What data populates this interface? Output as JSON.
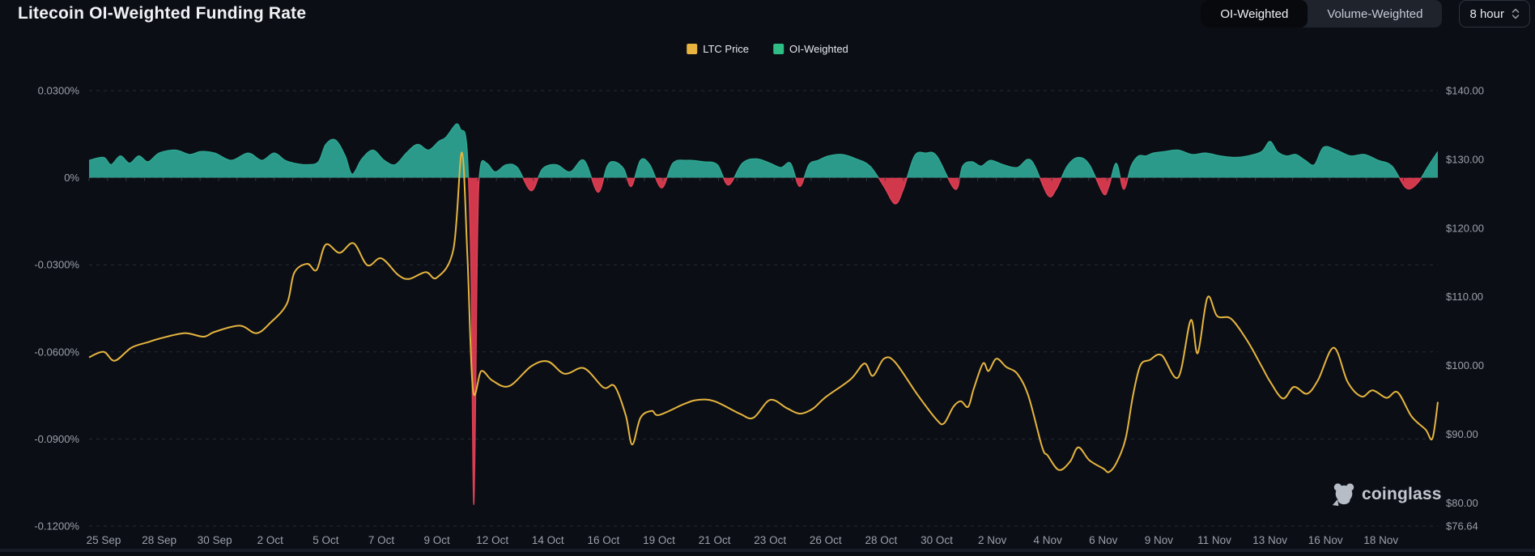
{
  "header": {
    "title": "Litecoin OI-Weighted Funding Rate",
    "tabs": [
      {
        "label": "OI-Weighted",
        "active": true
      },
      {
        "label": "Volume-Weighted",
        "active": false
      }
    ],
    "interval_select": {
      "value": "8 hour"
    }
  },
  "legend": {
    "items": [
      {
        "label": "LTC Price",
        "color": "#e8b33f"
      },
      {
        "label": "OI-Weighted",
        "color": "#2ebd85"
      }
    ]
  },
  "watermark": {
    "text": "coinglass"
  },
  "colors": {
    "background": "#0b0e15",
    "grid": "#262b36",
    "axis_text": "#9aa0aa",
    "price_line": "#e6b53f",
    "funding_positive": "#2b9a8b",
    "funding_positive_stroke": "#2fa892",
    "funding_negative": "#d2384c",
    "funding_negative_stroke": "#de4257"
  },
  "chart_data": {
    "type": "line",
    "title": "Litecoin OI-Weighted Funding Rate",
    "grid": "horizontal dashed",
    "legend_position": "top-center",
    "x_axis": {
      "labels": [
        "25 Sep",
        "28 Sep",
        "30 Sep",
        "2 Oct",
        "5 Oct",
        "7 Oct",
        "9 Oct",
        "12 Oct",
        "14 Oct",
        "16 Oct",
        "19 Oct",
        "21 Oct",
        "23 Oct",
        "26 Oct",
        "28 Oct",
        "30 Oct",
        "2 Nov",
        "4 Nov",
        "6 Nov",
        "9 Nov",
        "11 Nov",
        "13 Nov",
        "16 Nov",
        "18 Nov"
      ],
      "label_days": [
        0,
        3,
        5,
        7,
        10,
        12,
        14,
        17,
        19,
        21,
        24,
        26,
        28,
        31,
        33,
        35,
        38,
        40,
        42,
        45,
        47,
        49,
        52,
        54
      ],
      "start_date": "25 Sep",
      "end_date": "18 Nov"
    },
    "y_axis_left": {
      "name": "OI-Weighted Funding Rate",
      "range": [
        -0.12,
        0.03
      ],
      "ticks": [
        {
          "label": "0.0300%",
          "value": 0.03
        },
        {
          "label": "0%",
          "value": 0
        },
        {
          "label": "-0.0300%",
          "value": -0.03
        },
        {
          "label": "-0.0600%",
          "value": -0.06
        },
        {
          "label": "-0.0900%",
          "value": -0.09
        },
        {
          "label": "-0.1200%",
          "value": -0.12
        }
      ]
    },
    "y_axis_right": {
      "name": "LTC Price (USD)",
      "range": [
        76.64,
        140
      ],
      "ticks": [
        {
          "label": "$140.00",
          "value": 140
        },
        {
          "label": "$130.00",
          "value": 130
        },
        {
          "label": "$120.00",
          "value": 120
        },
        {
          "label": "$110.00",
          "value": 110
        },
        {
          "label": "$100.00",
          "value": 100
        },
        {
          "label": "$90.00",
          "value": 90
        },
        {
          "label": "$80.00",
          "value": 80
        },
        {
          "label": "$76.64",
          "value": 76.64
        }
      ]
    },
    "series": [
      {
        "name": "OI-Weighted",
        "type": "area",
        "axis": "left",
        "unit": "%",
        "points": [
          [
            -0.8,
            0.006
          ],
          [
            0,
            0.007
          ],
          [
            0.4,
            0.0045
          ],
          [
            0.9,
            0.0075
          ],
          [
            1.4,
            0.005
          ],
          [
            1.9,
            0.0075
          ],
          [
            2.4,
            0.0055
          ],
          [
            3,
            0.0085
          ],
          [
            3.6,
            0.0095
          ],
          [
            4.1,
            0.008
          ],
          [
            4.5,
            0.009
          ],
          [
            5,
            0.0085
          ],
          [
            5.6,
            0.006
          ],
          [
            6.2,
            0.0085
          ],
          [
            6.7,
            0.006
          ],
          [
            7.2,
            0.0085
          ],
          [
            7.8,
            0.006
          ],
          [
            8.3,
            0.005
          ],
          [
            9,
            0.0045
          ],
          [
            9.6,
            0.0055
          ],
          [
            10,
            0.0115
          ],
          [
            10.35,
            0.013
          ],
          [
            10.7,
            0.0075
          ],
          [
            10.95,
            0.0012
          ],
          [
            11.3,
            0.0065
          ],
          [
            11.7,
            0.0095
          ],
          [
            12.1,
            0.006
          ],
          [
            12.5,
            0.0045
          ],
          [
            12.9,
            0.0085
          ],
          [
            13.3,
            0.0115
          ],
          [
            13.7,
            0.0095
          ],
          [
            14.1,
            0.0125
          ],
          [
            14.5,
            0.014
          ],
          [
            15.05,
            0.0185
          ],
          [
            15.3,
            0.0165
          ],
          [
            15.55,
            0.0145
          ],
          [
            15.7,
            0.001
          ],
          [
            15.85,
            -0.035
          ],
          [
            16,
            -0.1125
          ],
          [
            16.2,
            -0.02
          ],
          [
            16.35,
            0.0035
          ],
          [
            16.7,
            0.005
          ],
          [
            17.1,
            0.002
          ],
          [
            17.5,
            0.0045
          ],
          [
            17.9,
            0.0035
          ],
          [
            18.4,
            -0.0045
          ],
          [
            18.8,
            0.003
          ],
          [
            19.3,
            0.0045
          ],
          [
            19.8,
            0.002
          ],
          [
            20.3,
            0.006
          ],
          [
            20.8,
            -0.005
          ],
          [
            21.2,
            0.004
          ],
          [
            21.6,
            0.0055
          ],
          [
            22.1,
            0.003
          ],
          [
            22.5,
            -0.003
          ],
          [
            23,
            0.006
          ],
          [
            23.5,
            0.0045
          ],
          [
            24.1,
            -0.0035
          ],
          [
            24.5,
            0.005
          ],
          [
            25,
            0.006
          ],
          [
            25.6,
            0.0055
          ],
          [
            26.1,
            0.0045
          ],
          [
            26.5,
            -0.0025
          ],
          [
            27,
            0.005
          ],
          [
            27.5,
            0.0065
          ],
          [
            28,
            0.005
          ],
          [
            28.6,
            0.0035
          ],
          [
            29.1,
            0.005
          ],
          [
            29.6,
            -0.003
          ],
          [
            30.1,
            0.0045
          ],
          [
            30.6,
            0.006
          ],
          [
            31.1,
            0.0075
          ],
          [
            31.6,
            0.008
          ],
          [
            32.1,
            0.0065
          ],
          [
            32.6,
            0.004
          ],
          [
            33.1,
            -0.003
          ],
          [
            33.5,
            -0.009
          ],
          [
            33.8,
            -0.004
          ],
          [
            34.2,
            0.0075
          ],
          [
            34.6,
            0.0085
          ],
          [
            35,
            0.0075
          ],
          [
            36,
            -0.004
          ],
          [
            36.4,
            0.004
          ],
          [
            36.9,
            0.0055
          ],
          [
            37.4,
            0.004
          ],
          [
            37.9,
            0.006
          ],
          [
            38.4,
            0.0045
          ],
          [
            38.9,
            0.0035
          ],
          [
            39.4,
            0.006
          ],
          [
            40,
            -0.006
          ],
          [
            40.3,
            -0.004
          ],
          [
            40.7,
            0.004
          ],
          [
            41.1,
            0.007
          ],
          [
            41.5,
            0.0045
          ],
          [
            42,
            -0.0055
          ],
          [
            42.3,
            -0.003
          ],
          [
            42.7,
            0.005
          ],
          [
            43.1,
            -0.004
          ],
          [
            43.5,
            0.004
          ],
          [
            43.9,
            0.0075
          ],
          [
            44.3,
            0.0075
          ],
          [
            44.7,
            0.0085
          ],
          [
            45.2,
            0.009
          ],
          [
            45.7,
            0.0095
          ],
          [
            46.2,
            0.008
          ],
          [
            46.7,
            0.0085
          ],
          [
            47.2,
            0.0075
          ],
          [
            47.7,
            0.007
          ],
          [
            48.2,
            0.0075
          ],
          [
            48.7,
            0.009
          ],
          [
            49,
            0.0125
          ],
          [
            49.4,
            0.009
          ],
          [
            49.9,
            0.0075
          ],
          [
            50.4,
            0.008
          ],
          [
            50.9,
            0.006
          ],
          [
            51.4,
            0.0045
          ],
          [
            51.9,
            0.0105
          ],
          [
            52.4,
            0.0095
          ],
          [
            52.9,
            0.0075
          ],
          [
            53.4,
            0.008
          ],
          [
            53.9,
            0.006
          ],
          [
            54.4,
            0.004
          ],
          [
            54.9,
            -0.0035
          ],
          [
            55.3,
            -0.002
          ],
          [
            55.7,
            0.004
          ],
          [
            56.1,
            0.009
          ]
        ]
      },
      {
        "name": "LTC Price",
        "type": "line",
        "axis": "right",
        "unit": "USD",
        "points": [
          [
            -0.8,
            101.2
          ],
          [
            0,
            102
          ],
          [
            0.6,
            100.7
          ],
          [
            1.5,
            102.6
          ],
          [
            2.4,
            103.4
          ],
          [
            3,
            103.9
          ],
          [
            3.9,
            104.7
          ],
          [
            4.6,
            104.2
          ],
          [
            5,
            104.9
          ],
          [
            5.9,
            105.8
          ],
          [
            6.5,
            104.7
          ],
          [
            7,
            106.2
          ],
          [
            7.9,
            109
          ],
          [
            8.3,
            113.5
          ],
          [
            9,
            114.8
          ],
          [
            9.5,
            113.9
          ],
          [
            10,
            117.6
          ],
          [
            10.5,
            116.4
          ],
          [
            11,
            117.8
          ],
          [
            11.5,
            114.6
          ],
          [
            12,
            115.6
          ],
          [
            12.6,
            113.2
          ],
          [
            13,
            112.6
          ],
          [
            13.6,
            113.6
          ],
          [
            14,
            112.8
          ],
          [
            14.9,
            117
          ],
          [
            15.35,
            131
          ],
          [
            15.65,
            116
          ],
          [
            15.95,
            96.5
          ],
          [
            16.4,
            99.2
          ],
          [
            17,
            97.8
          ],
          [
            17.6,
            97
          ],
          [
            18.4,
            99.9
          ],
          [
            19,
            100.6
          ],
          [
            19.6,
            98.8
          ],
          [
            20.3,
            99.6
          ],
          [
            21,
            96.8
          ],
          [
            21.6,
            97
          ],
          [
            22.2,
            92.8
          ],
          [
            22.55,
            88.5
          ],
          [
            23,
            92.4
          ],
          [
            23.6,
            93.4
          ],
          [
            24,
            92.8
          ],
          [
            24.9,
            94.4
          ],
          [
            25.4,
            95
          ],
          [
            26,
            94.8
          ],
          [
            26.9,
            93
          ],
          [
            27.4,
            92.4
          ],
          [
            28,
            95
          ],
          [
            28.9,
            93.8
          ],
          [
            29.6,
            93
          ],
          [
            30.3,
            93.7
          ],
          [
            31,
            95.4
          ],
          [
            31.9,
            98
          ],
          [
            32.4,
            100.3
          ],
          [
            32.7,
            98.5
          ],
          [
            33.1,
            101
          ],
          [
            33.5,
            100.5
          ],
          [
            34.3,
            95.8
          ],
          [
            35,
            92.1
          ],
          [
            35.4,
            91.6
          ],
          [
            35.9,
            94
          ],
          [
            36.3,
            94.8
          ],
          [
            36.7,
            94
          ],
          [
            37,
            96.6
          ],
          [
            37.5,
            100.3
          ],
          [
            37.8,
            99.2
          ],
          [
            38.15,
            101
          ],
          [
            38.5,
            99.8
          ],
          [
            38.9,
            98.8
          ],
          [
            39.3,
            95.6
          ],
          [
            39.8,
            88.1
          ],
          [
            40,
            86.9
          ],
          [
            40.4,
            84.8
          ],
          [
            40.8,
            86
          ],
          [
            41.1,
            88.1
          ],
          [
            41.5,
            86.2
          ],
          [
            42,
            85
          ],
          [
            42.3,
            84.5
          ],
          [
            42.7,
            85.8
          ],
          [
            43.2,
            89.3
          ],
          [
            43.6,
            95.6
          ],
          [
            44,
            100
          ],
          [
            44.5,
            100.8
          ],
          [
            45.1,
            101.5
          ],
          [
            45.7,
            98.3
          ],
          [
            46.15,
            106.6
          ],
          [
            46.4,
            101.8
          ],
          [
            46.75,
            109.9
          ],
          [
            47.1,
            107.2
          ],
          [
            47.6,
            106.8
          ],
          [
            48.2,
            103.5
          ],
          [
            48.7,
            99.9
          ],
          [
            49,
            97.7
          ],
          [
            49.7,
            95.2
          ],
          [
            50.3,
            96.9
          ],
          [
            51,
            95.9
          ],
          [
            51.6,
            97.9
          ],
          [
            52.3,
            102.6
          ],
          [
            52.8,
            97.6
          ],
          [
            53.3,
            95.5
          ],
          [
            53.7,
            96.4
          ],
          [
            54.2,
            95.3
          ],
          [
            54.6,
            96.1
          ],
          [
            55.1,
            92.6
          ],
          [
            55.6,
            90.7
          ],
          [
            55.85,
            89.4
          ],
          [
            56.1,
            94.7
          ]
        ]
      }
    ]
  }
}
